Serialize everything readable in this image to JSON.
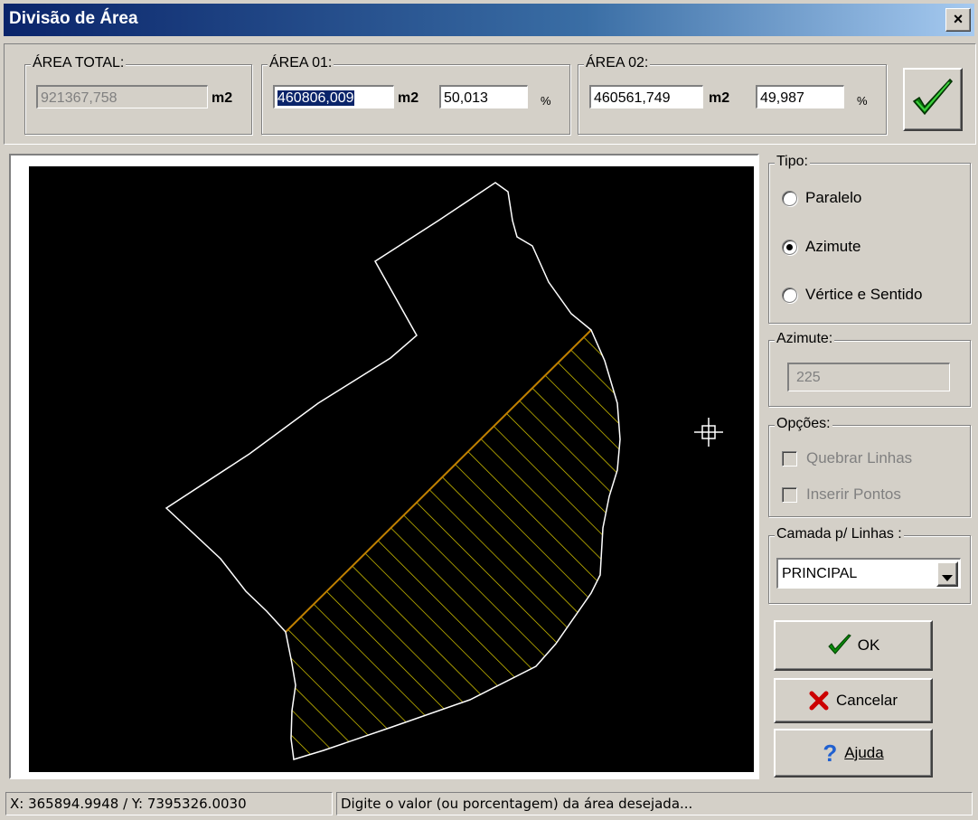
{
  "window": {
    "title": "Divisão de Área",
    "close_label": "×"
  },
  "area_total": {
    "label": "ÁREA TOTAL:",
    "value": "921367,758",
    "unit": "m2"
  },
  "area_01": {
    "label": "ÁREA 01:",
    "value": "460806,009",
    "unit": "m2",
    "percent": "50,013",
    "percent_symbol": "%"
  },
  "area_02": {
    "label": "ÁREA 02:",
    "value": "460561,749",
    "unit": "m2",
    "percent": "49,987",
    "percent_symbol": "%"
  },
  "tipo": {
    "label": "Tipo:",
    "options": [
      "Paralelo",
      "Azimute",
      "Vértice e Sentido"
    ],
    "selected": "Azimute"
  },
  "azimute": {
    "label": "Azimute:",
    "value": "225"
  },
  "opcoes": {
    "label": "Opções:",
    "items": [
      "Quebrar Linhas",
      "Inserir Pontos"
    ]
  },
  "camada": {
    "label": "Camada p/ Linhas :",
    "value": "PRINCIPAL"
  },
  "buttons": {
    "ok": "OK",
    "cancel": "Cancelar",
    "help": "Ajuda"
  },
  "icons": {
    "apply": "checkmark-icon",
    "ok": "checkmark-icon",
    "cancel": "red-x-icon",
    "help": "question-icon",
    "cursor": "crosshair-icon"
  },
  "colors": {
    "titlebar": "#0a246a",
    "polygon": "#ffffff",
    "hatch": "#e0d000",
    "check": "#00a000",
    "cancel": "#cc0000",
    "help": "#2060d0"
  },
  "status": {
    "coords": "X: 365894.9948 / Y: 7395326.0030",
    "message": "Digite o valor (ou porcentagem) da área desejada..."
  }
}
